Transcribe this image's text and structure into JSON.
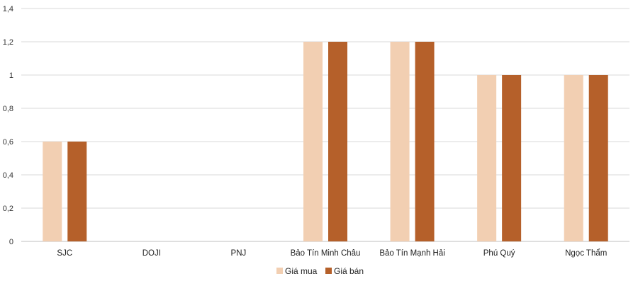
{
  "chart_data": {
    "type": "bar",
    "categories": [
      "SJC",
      "DOJI",
      "PNJ",
      "Bảo Tín Minh Châu",
      "Bảo Tín Mạnh Hải",
      "Phú Quý",
      "Ngọc Thẩm"
    ],
    "series": [
      {
        "name": "Giá mua",
        "values": [
          0.6,
          0,
          0,
          1.2,
          1.2,
          1.0,
          1.0
        ],
        "color": "#F2CFB2"
      },
      {
        "name": "Giá bán",
        "values": [
          0.6,
          0,
          0,
          1.2,
          1.2,
          1.0,
          1.0
        ],
        "color": "#B5602A"
      }
    ],
    "yticks": [
      "0",
      "0,2",
      "0,4",
      "0,6",
      "0,8",
      "1",
      "1,2",
      "1,4"
    ],
    "ylim": [
      0,
      1.4
    ],
    "grid": true,
    "legend_position": "bottom"
  }
}
